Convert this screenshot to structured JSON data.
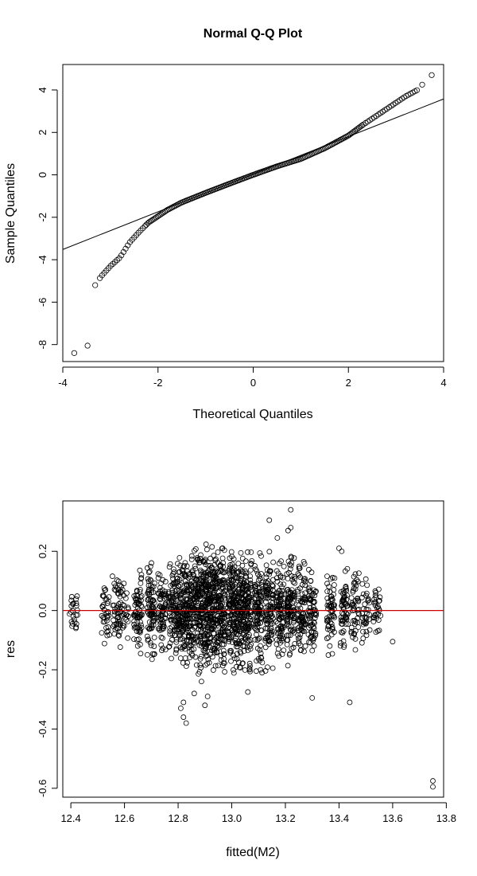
{
  "chart_data": [
    {
      "type": "scatter",
      "title": "Normal Q-Q Plot",
      "xlabel": "Theoretical Quantiles",
      "ylabel": "Sample Quantiles",
      "xlim": [
        -4,
        4
      ],
      "ylim": [
        -8.8,
        5.2
      ],
      "xticks": [
        -4,
        -2,
        0,
        2,
        4
      ],
      "yticks": [
        -8,
        -6,
        -4,
        -2,
        0,
        2,
        4
      ],
      "grid": false,
      "reference_line": {
        "intercept": 0.03,
        "slope": 0.88,
        "color": "#000000"
      },
      "profile": [
        [
          -3.76,
          -8.4
        ],
        [
          -3.48,
          -8.05
        ],
        [
          -3.32,
          -5.2
        ],
        [
          -3.2,
          -4.8
        ],
        [
          -3.0,
          -4.3
        ],
        [
          -2.8,
          -3.9
        ],
        [
          -2.6,
          -3.2
        ],
        [
          -2.4,
          -2.7
        ],
        [
          -2.2,
          -2.25
        ],
        [
          -2.0,
          -1.95
        ],
        [
          -1.8,
          -1.65
        ],
        [
          -1.5,
          -1.3
        ],
        [
          -1.0,
          -0.85
        ],
        [
          -0.5,
          -0.42
        ],
        [
          0.0,
          0.0
        ],
        [
          0.5,
          0.4
        ],
        [
          1.0,
          0.75
        ],
        [
          1.5,
          1.25
        ],
        [
          2.0,
          1.85
        ],
        [
          2.3,
          2.35
        ],
        [
          2.6,
          2.8
        ],
        [
          2.9,
          3.25
        ],
        [
          3.2,
          3.7
        ],
        [
          3.45,
          4.0
        ],
        [
          3.55,
          4.25
        ],
        [
          3.75,
          4.7
        ]
      ]
    },
    {
      "type": "scatter",
      "title": "",
      "xlabel": "fitted(M2)",
      "ylabel": "res",
      "xlim": [
        12.37,
        13.79
      ],
      "ylim": [
        -0.63,
        0.37
      ],
      "xticks": [
        12.4,
        12.6,
        12.8,
        13.0,
        13.2,
        13.4,
        13.6,
        13.8
      ],
      "xtick_labels": [
        "12.4",
        "12.6",
        "12.8",
        "13.0",
        "13.2",
        "13.4",
        "13.6",
        "13.8"
      ],
      "yticks": [
        -0.6,
        -0.4,
        -0.2,
        0.0,
        0.2
      ],
      "ytick_labels": [
        "-0.6",
        "-0.4",
        "-0.2",
        "0.0",
        "0.2"
      ],
      "grid": false,
      "reference_line": {
        "y": 0,
        "color": "#cc0000"
      },
      "columns": [
        [
          12.41,
          0.09,
          1.0
        ],
        [
          12.53,
          0.11,
          1.5
        ],
        [
          12.57,
          0.13,
          2.0
        ],
        [
          12.6,
          0.1,
          1.2
        ],
        [
          12.65,
          0.15,
          3.0
        ],
        [
          12.7,
          0.17,
          3.5
        ],
        [
          12.74,
          0.15,
          3.0
        ],
        [
          12.78,
          0.16,
          3.5
        ],
        [
          12.81,
          0.2,
          4.5
        ],
        [
          12.84,
          0.2,
          5.0
        ],
        [
          12.87,
          0.22,
          5.5
        ],
        [
          12.9,
          0.23,
          6.0
        ],
        [
          12.93,
          0.23,
          6.0
        ],
        [
          12.96,
          0.22,
          6.0
        ],
        [
          13.0,
          0.21,
          5.5
        ],
        [
          13.03,
          0.21,
          5.5
        ],
        [
          13.06,
          0.2,
          5.0
        ],
        [
          13.1,
          0.2,
          4.5
        ],
        [
          13.14,
          0.2,
          4.5
        ],
        [
          13.18,
          0.18,
          4.0
        ],
        [
          13.22,
          0.2,
          4.5
        ],
        [
          13.26,
          0.17,
          3.5
        ],
        [
          13.3,
          0.16,
          3.0
        ],
        [
          13.37,
          0.15,
          2.5
        ],
        [
          13.42,
          0.15,
          2.5
        ],
        [
          13.46,
          0.15,
          2.0
        ],
        [
          13.5,
          0.12,
          1.5
        ],
        [
          13.54,
          0.1,
          1.2
        ]
      ],
      "outliers": [
        [
          13.75,
          -0.575
        ],
        [
          13.75,
          -0.595
        ],
        [
          13.22,
          0.34
        ],
        [
          13.22,
          0.28
        ],
        [
          13.21,
          0.27
        ],
        [
          13.14,
          0.305
        ],
        [
          12.83,
          -0.38
        ],
        [
          12.82,
          -0.36
        ],
        [
          12.81,
          -0.33
        ],
        [
          12.82,
          -0.31
        ],
        [
          13.44,
          -0.31
        ],
        [
          13.3,
          -0.295
        ],
        [
          13.6,
          -0.105
        ],
        [
          12.86,
          -0.28
        ],
        [
          12.9,
          -0.32
        ],
        [
          12.91,
          -0.29
        ],
        [
          13.06,
          -0.275
        ],
        [
          13.4,
          0.21
        ],
        [
          13.41,
          0.2
        ],
        [
          13.17,
          0.245
        ]
      ]
    }
  ]
}
